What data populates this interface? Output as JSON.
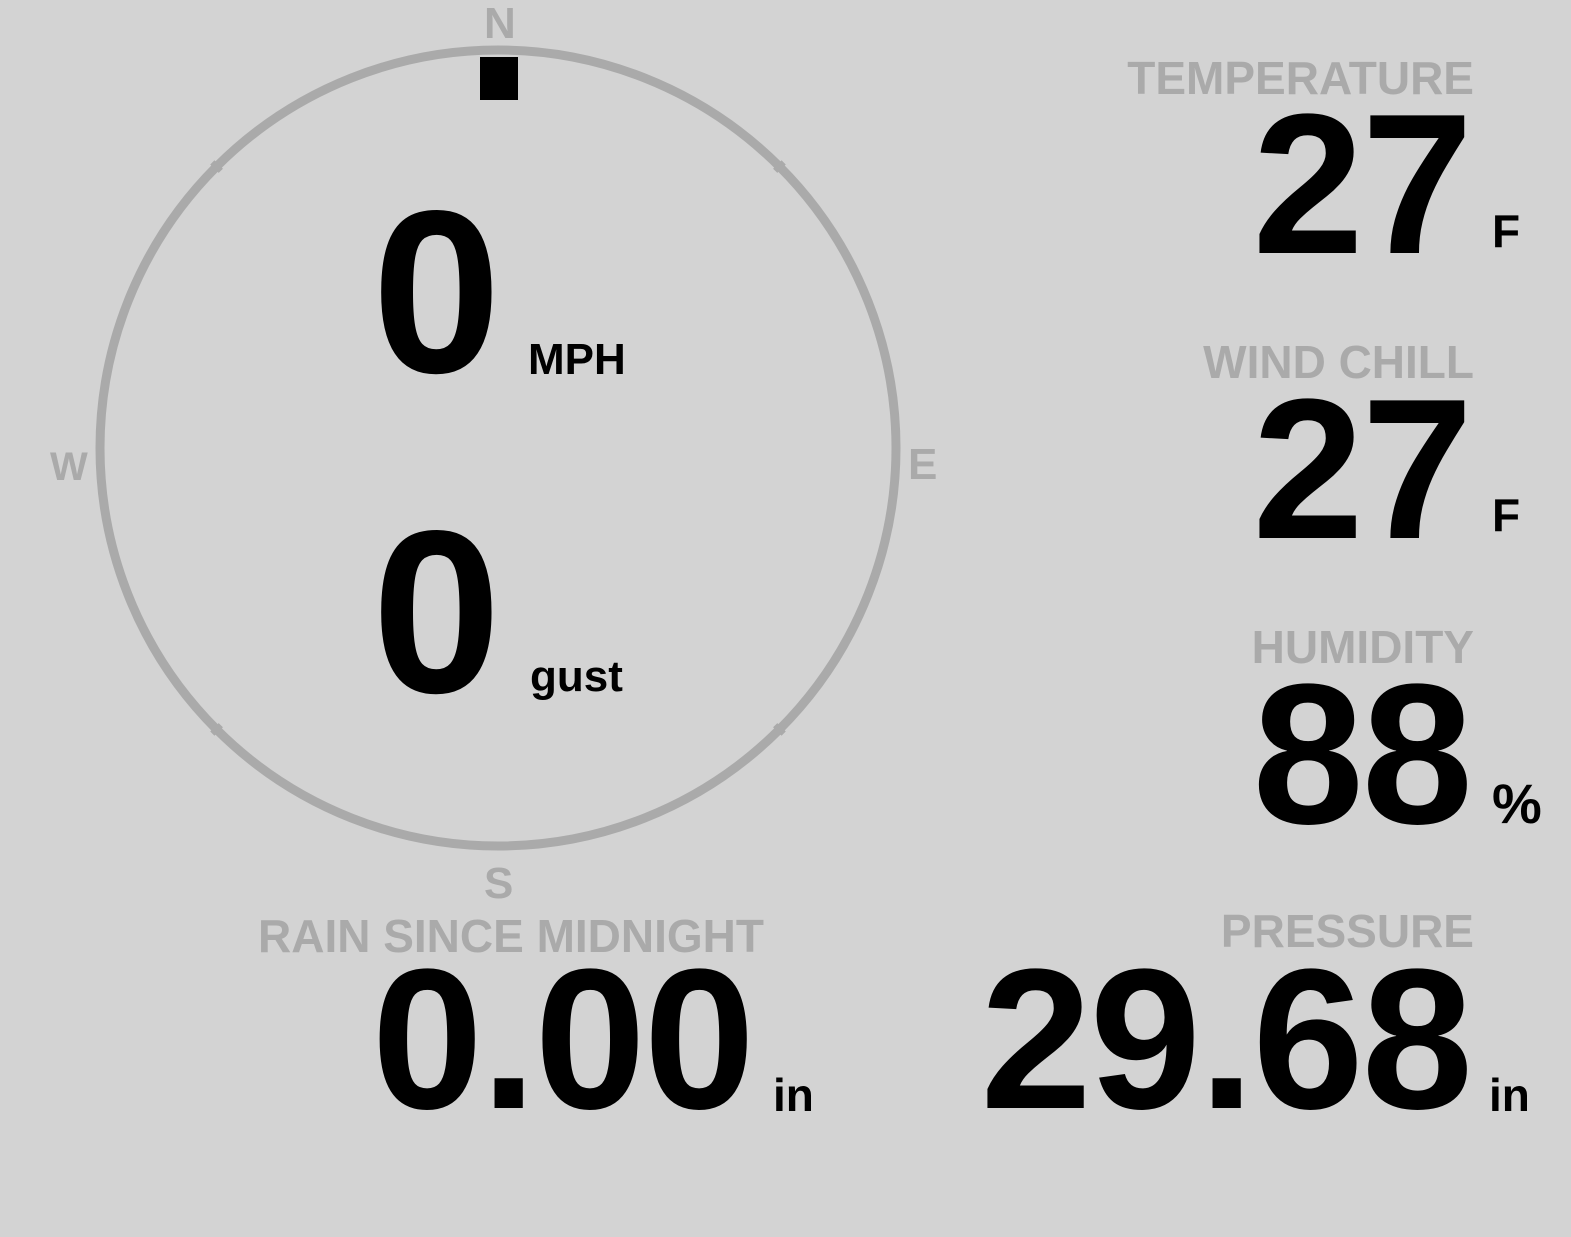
{
  "wind": {
    "compass": {
      "north": "N",
      "south": "S",
      "east": "E",
      "west": "W"
    },
    "direction_degrees": 0,
    "speed": "0",
    "speed_unit": "MPH",
    "gust": "0",
    "gust_unit": "gust"
  },
  "temperature": {
    "label": "TEMPERATURE",
    "value": "27",
    "unit": "F"
  },
  "wind_chill": {
    "label": "WIND CHILL",
    "value": "27",
    "unit": "F"
  },
  "humidity": {
    "label": "HUMIDITY",
    "value": "88",
    "unit": "%"
  },
  "rain": {
    "label": "RAIN SINCE MIDNIGHT",
    "value": "0.00",
    "unit": "in"
  },
  "pressure": {
    "label": "PRESSURE",
    "value": "29.68",
    "unit": "in"
  },
  "colors": {
    "background": "#d3d3d3",
    "muted": "#aaaaaa",
    "text": "#000000"
  }
}
